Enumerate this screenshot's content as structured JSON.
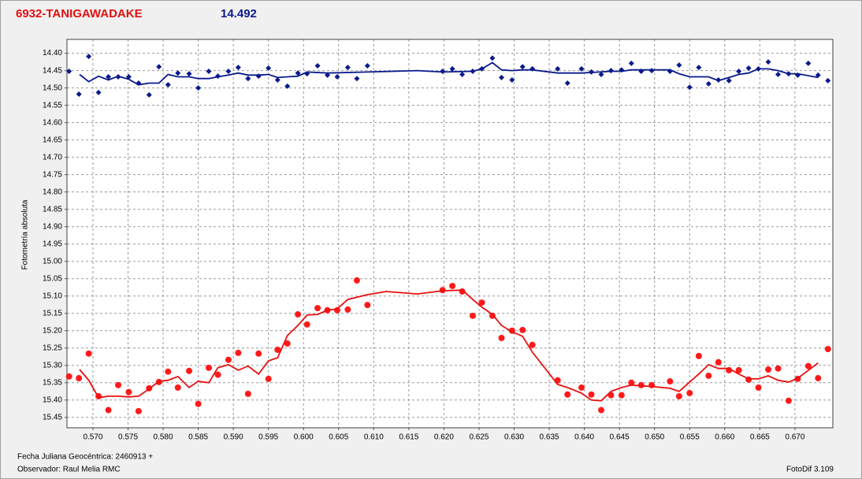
{
  "chart_data": {
    "type": "scatter",
    "title": "6932-TANIGAWADAKE",
    "subtitle": "14.492",
    "y_label": "Fotometría absoluta",
    "x_label": "Fecha Juliana Geocéntrica: 2460913 +",
    "observer": "Observador: Raul Melia RMC",
    "software": "FotoDif 3.109",
    "xlim": [
      0.5663,
      0.6754
    ],
    "ylim": [
      14.36,
      15.48
    ],
    "y_reversed": true,
    "grid": true,
    "xticks": [
      {
        "value": 0.57,
        "label": "0.570"
      },
      {
        "value": 0.575,
        "label": "0.575"
      },
      {
        "value": 0.58,
        "label": "0.580"
      },
      {
        "value": 0.585,
        "label": "0.585"
      },
      {
        "value": 0.59,
        "label": "0.590"
      },
      {
        "value": 0.595,
        "label": "0.595"
      },
      {
        "value": 0.6,
        "label": "0.600"
      },
      {
        "value": 0.605,
        "label": "0.605"
      },
      {
        "value": 0.61,
        "label": "0.610"
      },
      {
        "value": 0.615,
        "label": "0.615"
      },
      {
        "value": 0.62,
        "label": "0.620"
      },
      {
        "value": 0.625,
        "label": "0.625"
      },
      {
        "value": 0.63,
        "label": "0.630"
      },
      {
        "value": 0.635,
        "label": "0.635"
      },
      {
        "value": 0.64,
        "label": "0.640"
      },
      {
        "value": 0.645,
        "label": "0.645"
      },
      {
        "value": 0.65,
        "label": "0.650"
      },
      {
        "value": 0.655,
        "label": "0.655"
      },
      {
        "value": 0.66,
        "label": "0.660"
      },
      {
        "value": 0.665,
        "label": "0.665"
      },
      {
        "value": 0.67,
        "label": "0.670"
      }
    ],
    "yticks": [
      {
        "value": 14.4,
        "label": "14.40"
      },
      {
        "value": 14.45,
        "label": "14.45"
      },
      {
        "value": 14.5,
        "label": "14.50"
      },
      {
        "value": 14.55,
        "label": "14.55"
      },
      {
        "value": 14.6,
        "label": "14.60"
      },
      {
        "value": 14.65,
        "label": "14.65"
      },
      {
        "value": 14.7,
        "label": "14.70"
      },
      {
        "value": 14.75,
        "label": "14.75"
      },
      {
        "value": 14.8,
        "label": "14.80"
      },
      {
        "value": 14.85,
        "label": "14.85"
      },
      {
        "value": 14.9,
        "label": "14.90"
      },
      {
        "value": 14.95,
        "label": "14.95"
      },
      {
        "value": 15.0,
        "label": "15.00"
      },
      {
        "value": 15.05,
        "label": "15.05"
      },
      {
        "value": 15.1,
        "label": "15.10"
      },
      {
        "value": 15.15,
        "label": "15.15"
      },
      {
        "value": 15.2,
        "label": "15.20"
      },
      {
        "value": 15.25,
        "label": "15.25"
      },
      {
        "value": 15.3,
        "label": "15.30"
      },
      {
        "value": 15.35,
        "label": "15.35"
      },
      {
        "value": 15.4,
        "label": "15.40"
      },
      {
        "value": 15.45,
        "label": "15.45"
      }
    ],
    "series": [
      {
        "type": "scatter",
        "marker": "diamond",
        "color": "#0a1a8c",
        "x": [
          0.5666,
          0.568,
          0.5694,
          0.5708,
          0.5722,
          0.5736,
          0.5751,
          0.5765,
          0.578,
          0.5794,
          0.5807,
          0.5821,
          0.5837,
          0.585,
          0.5865,
          0.5878,
          0.5893,
          0.5907,
          0.5921,
          0.5936,
          0.595,
          0.5963,
          0.5977,
          0.5992,
          0.6005,
          0.602,
          0.6034,
          0.6048,
          0.6063,
          0.6076,
          0.6091,
          0.6198,
          0.6212,
          0.6226,
          0.6241,
          0.6254,
          0.6269,
          0.6282,
          0.6297,
          0.6312,
          0.6326,
          0.6362,
          0.6376,
          0.6396,
          0.641,
          0.6424,
          0.6438,
          0.6453,
          0.6467,
          0.6481,
          0.6496,
          0.6522,
          0.6535,
          0.655,
          0.6563,
          0.6577,
          0.6591,
          0.6606,
          0.662,
          0.6634,
          0.6648,
          0.6662,
          0.6676,
          0.6691,
          0.6704,
          0.6719,
          0.6733,
          0.6747
        ],
        "values": [
          14.452,
          14.518,
          14.409,
          14.513,
          14.468,
          14.468,
          14.468,
          14.486,
          14.52,
          14.439,
          14.491,
          14.457,
          14.459,
          14.5,
          14.452,
          14.466,
          14.452,
          14.441,
          14.473,
          14.466,
          14.443,
          14.477,
          14.495,
          14.457,
          14.459,
          14.436,
          14.463,
          14.468,
          14.441,
          14.473,
          14.436,
          14.452,
          14.445,
          14.461,
          14.452,
          14.445,
          14.414,
          14.47,
          14.477,
          14.439,
          14.445,
          14.445,
          14.486,
          14.445,
          14.454,
          14.461,
          14.45,
          14.448,
          14.429,
          14.452,
          14.45,
          14.452,
          14.434,
          14.498,
          14.441,
          14.488,
          14.477,
          14.479,
          14.452,
          14.443,
          14.445,
          14.425,
          14.461,
          14.459,
          14.463,
          14.429,
          14.463,
          14.479
        ]
      },
      {
        "type": "line",
        "color": "#0a1a8c",
        "x": [
          0.5681,
          0.5694,
          0.5708,
          0.5722,
          0.5736,
          0.5751,
          0.5765,
          0.578,
          0.5794,
          0.5807,
          0.5821,
          0.5837,
          0.585,
          0.5865,
          0.5878,
          0.5893,
          0.5907,
          0.5921,
          0.5936,
          0.595,
          0.5963,
          0.5977,
          0.5992,
          0.6005,
          0.6034,
          0.6091,
          0.6162,
          0.6198,
          0.6241,
          0.6254,
          0.6269,
          0.6282,
          0.6297,
          0.6312,
          0.6326,
          0.6362,
          0.6396,
          0.6438,
          0.6453,
          0.6467,
          0.6496,
          0.6522,
          0.6535,
          0.655,
          0.6577,
          0.6591,
          0.6606,
          0.662,
          0.6634,
          0.6648,
          0.6662,
          0.6676,
          0.6691,
          0.6704,
          0.6733
        ],
        "values": [
          14.461,
          14.482,
          14.466,
          14.477,
          14.466,
          14.475,
          14.491,
          14.486,
          14.486,
          14.461,
          14.468,
          14.468,
          14.473,
          14.473,
          14.468,
          14.463,
          14.457,
          14.463,
          14.463,
          14.461,
          14.47,
          14.468,
          14.466,
          14.454,
          14.457,
          14.454,
          14.45,
          14.454,
          14.452,
          14.445,
          14.427,
          14.448,
          14.45,
          14.448,
          14.448,
          14.457,
          14.457,
          14.452,
          14.452,
          14.448,
          14.448,
          14.448,
          14.459,
          14.468,
          14.468,
          14.479,
          14.47,
          14.461,
          14.457,
          14.445,
          14.445,
          14.45,
          14.459,
          14.459,
          14.47
        ]
      },
      {
        "type": "scatter",
        "marker": "circle",
        "color": "#ff1a1a",
        "x": [
          0.5666,
          0.568,
          0.5694,
          0.5708,
          0.5722,
          0.5736,
          0.5751,
          0.5765,
          0.578,
          0.5794,
          0.5807,
          0.5821,
          0.5837,
          0.585,
          0.5865,
          0.5878,
          0.5893,
          0.5907,
          0.5921,
          0.5936,
          0.595,
          0.5963,
          0.5977,
          0.5992,
          0.6005,
          0.602,
          0.6034,
          0.6048,
          0.6063,
          0.6076,
          0.6091,
          0.6198,
          0.6212,
          0.6226,
          0.6241,
          0.6254,
          0.6269,
          0.6282,
          0.6297,
          0.6312,
          0.6326,
          0.6362,
          0.6376,
          0.6396,
          0.641,
          0.6424,
          0.6438,
          0.6453,
          0.6467,
          0.6481,
          0.6496,
          0.6522,
          0.6535,
          0.655,
          0.6563,
          0.6577,
          0.6591,
          0.6606,
          0.662,
          0.6634,
          0.6648,
          0.6662,
          0.6676,
          0.6691,
          0.6704,
          0.6719,
          0.6733,
          0.6747
        ],
        "values": [
          15.332,
          15.337,
          15.266,
          15.389,
          15.429,
          15.357,
          15.377,
          15.432,
          15.366,
          15.348,
          15.318,
          15.364,
          15.316,
          15.411,
          15.307,
          15.327,
          15.284,
          15.264,
          15.382,
          15.266,
          15.339,
          15.255,
          15.237,
          15.153,
          15.182,
          15.135,
          15.141,
          15.141,
          15.139,
          15.055,
          15.126,
          15.083,
          15.071,
          15.087,
          15.157,
          15.119,
          15.157,
          15.221,
          15.2,
          15.198,
          15.241,
          15.343,
          15.384,
          15.364,
          15.384,
          15.429,
          15.386,
          15.386,
          15.35,
          15.357,
          15.357,
          15.346,
          15.389,
          15.38,
          15.273,
          15.33,
          15.291,
          15.314,
          15.314,
          15.341,
          15.364,
          15.312,
          15.309,
          15.402,
          15.339,
          15.302,
          15.337,
          15.253
        ]
      },
      {
        "type": "line",
        "color": "#e81010",
        "x": [
          0.5681,
          0.5694,
          0.5708,
          0.5722,
          0.5736,
          0.5751,
          0.5765,
          0.578,
          0.5794,
          0.5807,
          0.5821,
          0.5837,
          0.585,
          0.5865,
          0.5878,
          0.5893,
          0.5907,
          0.5921,
          0.5936,
          0.595,
          0.5963,
          0.5977,
          0.5992,
          0.6005,
          0.602,
          0.6034,
          0.6048,
          0.6063,
          0.6091,
          0.6118,
          0.6162,
          0.6198,
          0.6226,
          0.6241,
          0.6254,
          0.6269,
          0.6282,
          0.6297,
          0.6312,
          0.6326,
          0.6362,
          0.6376,
          0.6396,
          0.641,
          0.6424,
          0.6438,
          0.6453,
          0.6467,
          0.6481,
          0.6496,
          0.6522,
          0.6535,
          0.655,
          0.6563,
          0.6577,
          0.6591,
          0.6606,
          0.662,
          0.6634,
          0.6648,
          0.6662,
          0.6676,
          0.6691,
          0.6704,
          0.6733
        ],
        "values": [
          15.312,
          15.343,
          15.393,
          15.389,
          15.389,
          15.391,
          15.389,
          15.368,
          15.346,
          15.343,
          15.332,
          15.364,
          15.346,
          15.35,
          15.307,
          15.298,
          15.314,
          15.302,
          15.325,
          15.287,
          15.278,
          15.214,
          15.185,
          15.155,
          15.153,
          15.141,
          15.137,
          15.11,
          15.096,
          15.087,
          15.094,
          15.085,
          15.083,
          15.11,
          15.132,
          15.153,
          15.185,
          15.203,
          15.216,
          15.262,
          15.355,
          15.364,
          15.38,
          15.4,
          15.402,
          15.375,
          15.364,
          15.357,
          15.359,
          15.361,
          15.366,
          15.375,
          15.348,
          15.325,
          15.298,
          15.309,
          15.309,
          15.325,
          15.339,
          15.339,
          15.33,
          15.343,
          15.348,
          15.337,
          15.293
        ]
      }
    ]
  }
}
